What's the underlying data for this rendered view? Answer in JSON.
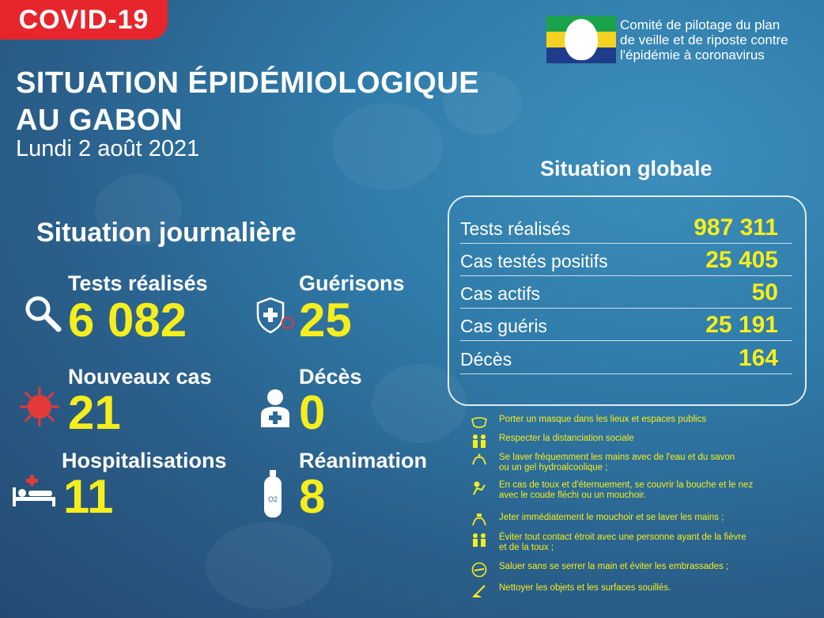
{
  "badge": "COVID-19",
  "title_line1": "SITUATION ÉPIDÉMIOLOGIQUE",
  "title_line2": "AU GABON",
  "date": "Lundi 2 août 2021",
  "committee": {
    "line1": "Comité de pilotage du plan",
    "line2": "de veille et de riposte contre",
    "line3": "l'épidémie à coronavirus"
  },
  "daily": {
    "heading": "Situation journalière",
    "stats": [
      {
        "label": "Tests réalisés",
        "value": "6 082",
        "icon": "magnifier-icon"
      },
      {
        "label": "Guérisons",
        "value": "25",
        "icon": "shield-cross-icon"
      },
      {
        "label": "Nouveaux cas",
        "value": "21",
        "icon": "virus-icon"
      },
      {
        "label": "Décès",
        "value": "0",
        "icon": "person-cross-icon"
      },
      {
        "label": "Hospitalisations",
        "value": "11",
        "icon": "hospital-bed-icon"
      },
      {
        "label": "Réanimation",
        "value": "8",
        "icon": "oxygen-tank-icon"
      }
    ]
  },
  "global": {
    "heading": "Situation globale",
    "rows": [
      {
        "label": "Tests réalisés",
        "value": "987 311"
      },
      {
        "label": "Cas testés positifs",
        "value": "25 405"
      },
      {
        "label": "Cas actifs",
        "value": "50"
      },
      {
        "label": "Cas guéris",
        "value": "25 191"
      },
      {
        "label": "Décès",
        "value": "164"
      }
    ]
  },
  "advice": [
    {
      "text": "Porter un masque dans les lieux et espaces publics",
      "icon": "mask-icon"
    },
    {
      "text": "Respecter la distanciation sociale",
      "icon": "distancing-icon"
    },
    {
      "text": "Se laver fréquemment les mains avec de l'eau et du savon\n ou un gel hydroalcoolique ;",
      "icon": "handwash-icon"
    },
    {
      "text": "En cas de toux et d'éternuement, se couvrir la bouche et le nez\n avec le coude fléchi ou un mouchoir.",
      "icon": "sneeze-icon"
    },
    {
      "text": "Jeter immédiatement le mouchoir et se laver les mains ;",
      "icon": "tissue-icon"
    },
    {
      "text": "Éviter tout contact étroit avec une personne ayant de la fièvre\n et de la toux ;",
      "icon": "avoid-contact-icon"
    },
    {
      "text": "Saluer sans se serrer la main et éviter les embrassades ;",
      "icon": "no-handshake-icon"
    },
    {
      "text": "Nettoyer les objets et les surfaces souillés.",
      "icon": "cleaning-icon"
    }
  ],
  "colors": {
    "accent_yellow": "#f6ee1c",
    "badge_red": "#e6262c",
    "icon_red": "#e23a3a"
  }
}
